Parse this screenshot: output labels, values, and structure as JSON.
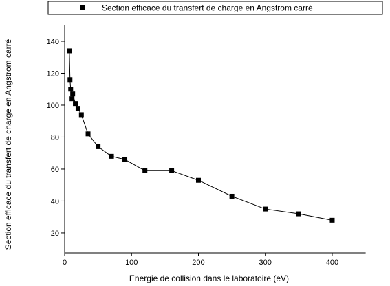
{
  "chart_data": {
    "type": "line",
    "legend_label": "Section efficace du transfert de charge en Angstrom carré",
    "x_label": "Energie de collision dans le laboratoire (eV)",
    "y_label": "Section efficace du transfert de charge en Angstrom carré",
    "xlim": [
      0,
      450
    ],
    "ylim": [
      7.5,
      150
    ],
    "xticks": [
      0,
      100,
      200,
      300,
      400
    ],
    "yticks": [
      20,
      40,
      60,
      80,
      100,
      120,
      140
    ],
    "series": [
      {
        "name": "Section efficace du transfert de charge en Angstrom carré",
        "color": "#000000",
        "x": [
          7,
          8,
          9,
          11,
          12,
          16,
          20,
          25,
          35,
          50,
          70,
          90,
          120,
          160,
          200,
          250,
          300,
          350,
          400
        ],
        "values": [
          134,
          116,
          110,
          104,
          107,
          101,
          98,
          94,
          82,
          74,
          68,
          66,
          59,
          59,
          53,
          43,
          35,
          32,
          28
        ]
      }
    ]
  }
}
